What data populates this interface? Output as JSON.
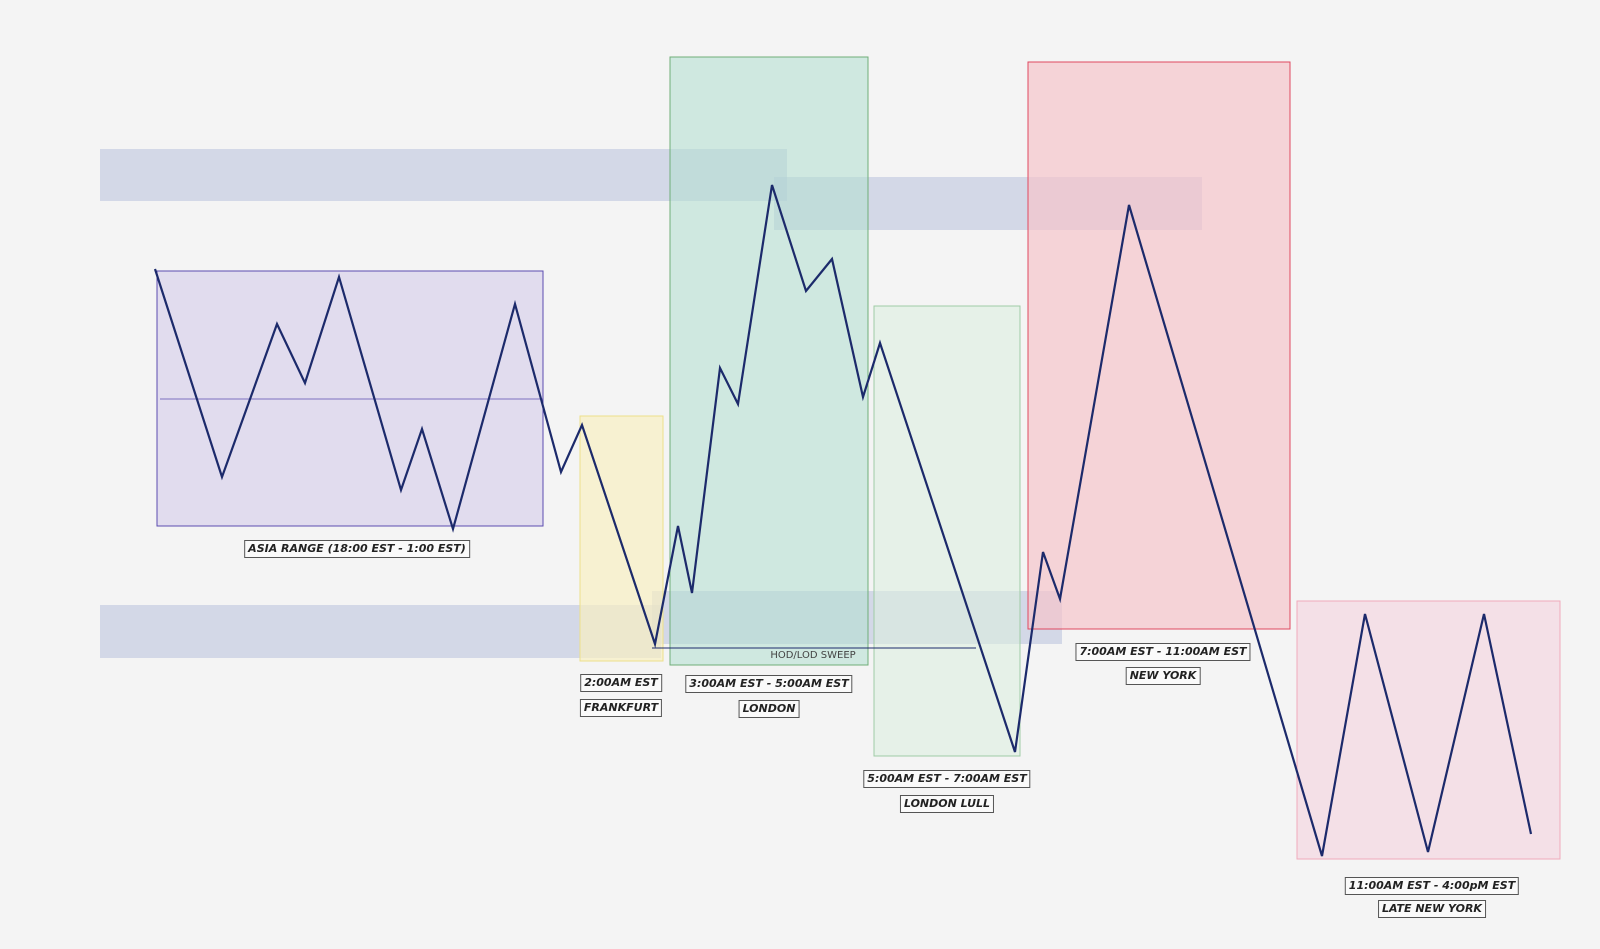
{
  "sessions": {
    "asia": {
      "label": "ASIA RANGE (18:00 EST - 1:00 EST)"
    },
    "frankfurt": {
      "time": "2:00AM EST",
      "name": "FRANKFURT"
    },
    "london": {
      "time": "3:00AM EST - 5:00AM EST",
      "name": "LONDON"
    },
    "london_lull": {
      "time": "5:00AM EST - 7:00AM EST",
      "name": "LONDON LULL"
    },
    "new_york": {
      "time": "7:00AM EST - 11:00AM EST",
      "name": "NEW YORK"
    },
    "late_new_york": {
      "time": "11:00AM EST - 4:00pM EST",
      "name": "LATE NEW YORK"
    }
  },
  "annotations": {
    "sweep": "HOD/LOD SWEEP"
  },
  "colors": {
    "price_line": "#1c2a6b",
    "liquidity_band": "#aab6d6",
    "asia_fill": "#d7d0eb",
    "asia_border": "#5b4db0",
    "frankfurt_fill": "#f8efc2",
    "london_fill": "#b5e0d2",
    "lull_fill": "#dcefdf",
    "ny_fill": "#f5c4cb",
    "late_ny_fill": "#f4dbe3"
  }
}
